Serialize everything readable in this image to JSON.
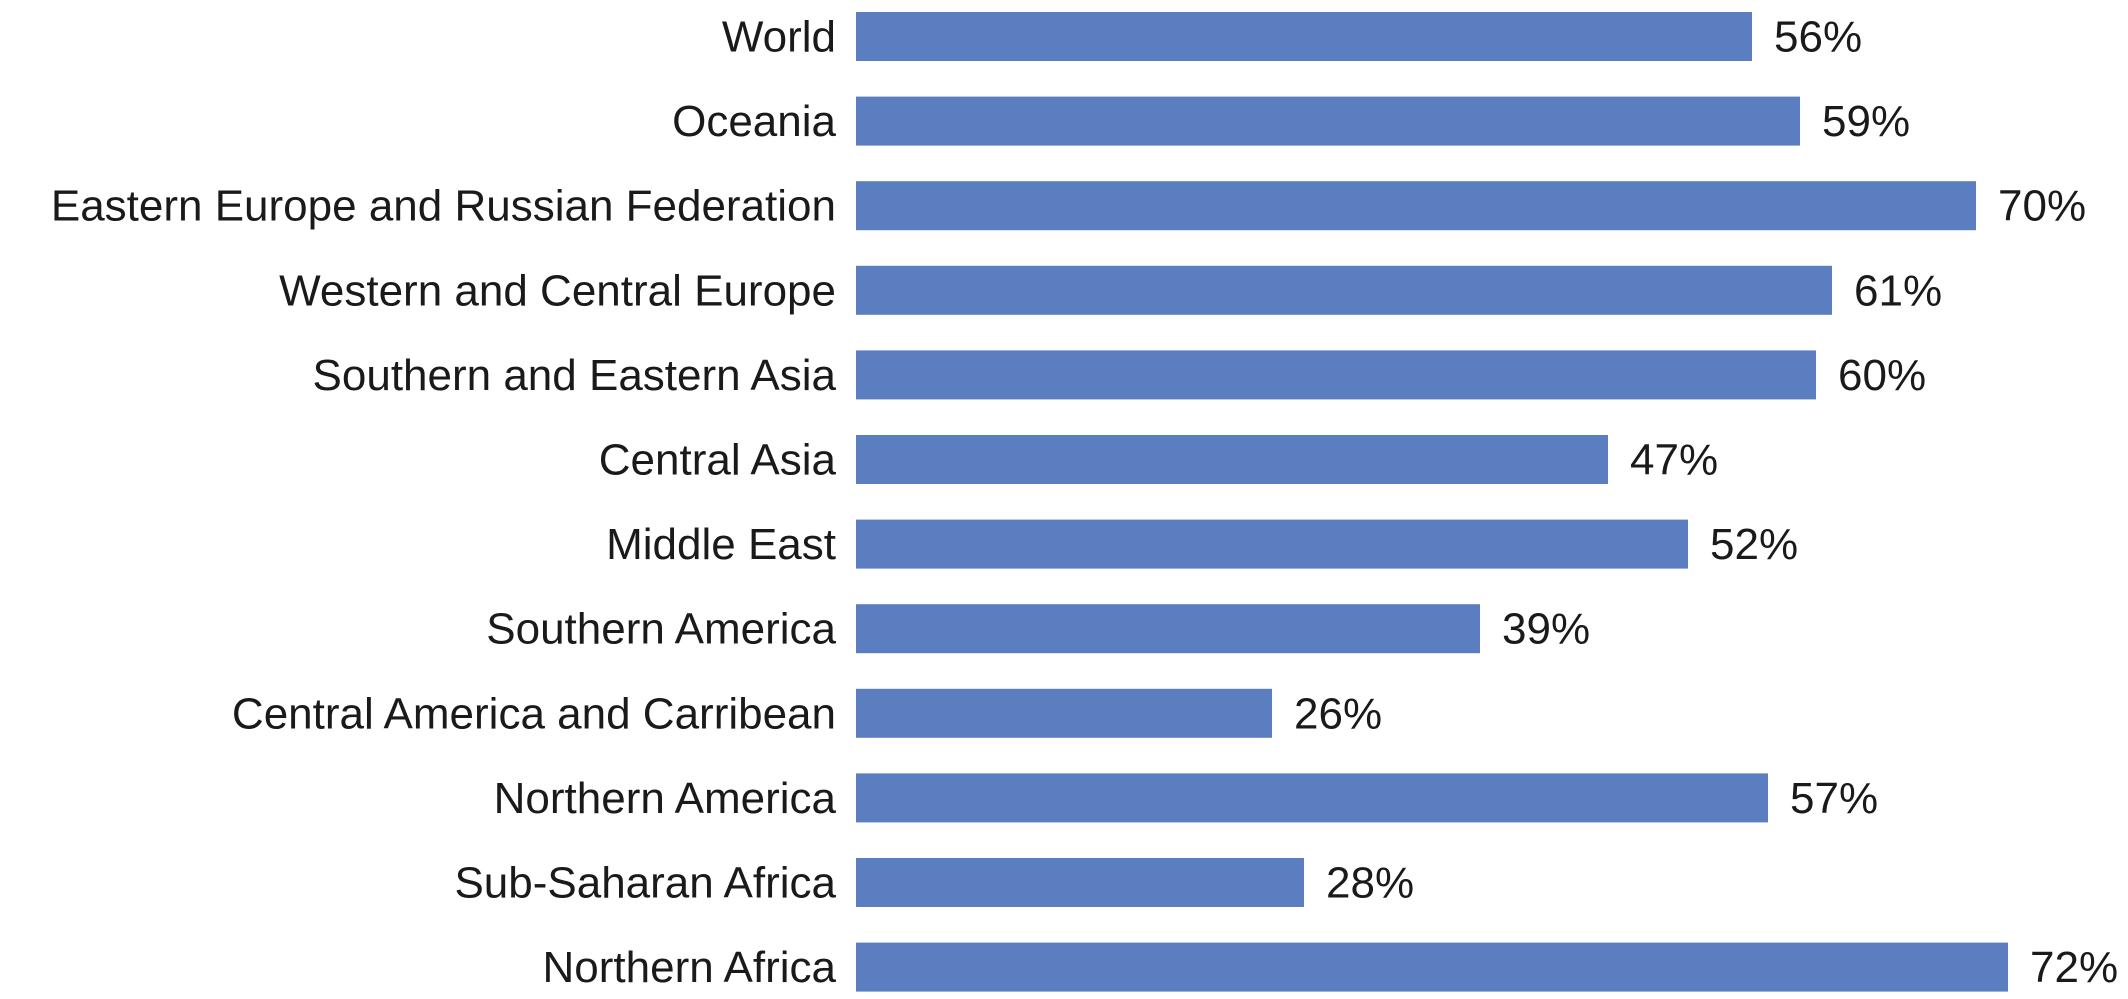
{
  "chart_data": {
    "type": "bar",
    "orientation": "horizontal",
    "categories": [
      "World",
      "Oceania",
      "Eastern Europe and Russian Federation",
      "Western and Central Europe",
      "Southern and Eastern Asia",
      "Central Asia",
      "Middle East",
      "Southern America",
      "Central America and Carribean",
      "Northern America",
      "Sub-Saharan Africa",
      "Northern Africa"
    ],
    "values": [
      56,
      59,
      70,
      61,
      60,
      47,
      52,
      39,
      26,
      57,
      28,
      72
    ],
    "value_labels": [
      "56%",
      "59%",
      "70%",
      "61%",
      "60%",
      "47%",
      "52%",
      "39%",
      "26%",
      "57%",
      "28%",
      "72%"
    ],
    "unit": "%",
    "xlim": [
      0,
      72
    ],
    "grid": false,
    "legend": "none",
    "bar_color": "#5b7ec1"
  }
}
